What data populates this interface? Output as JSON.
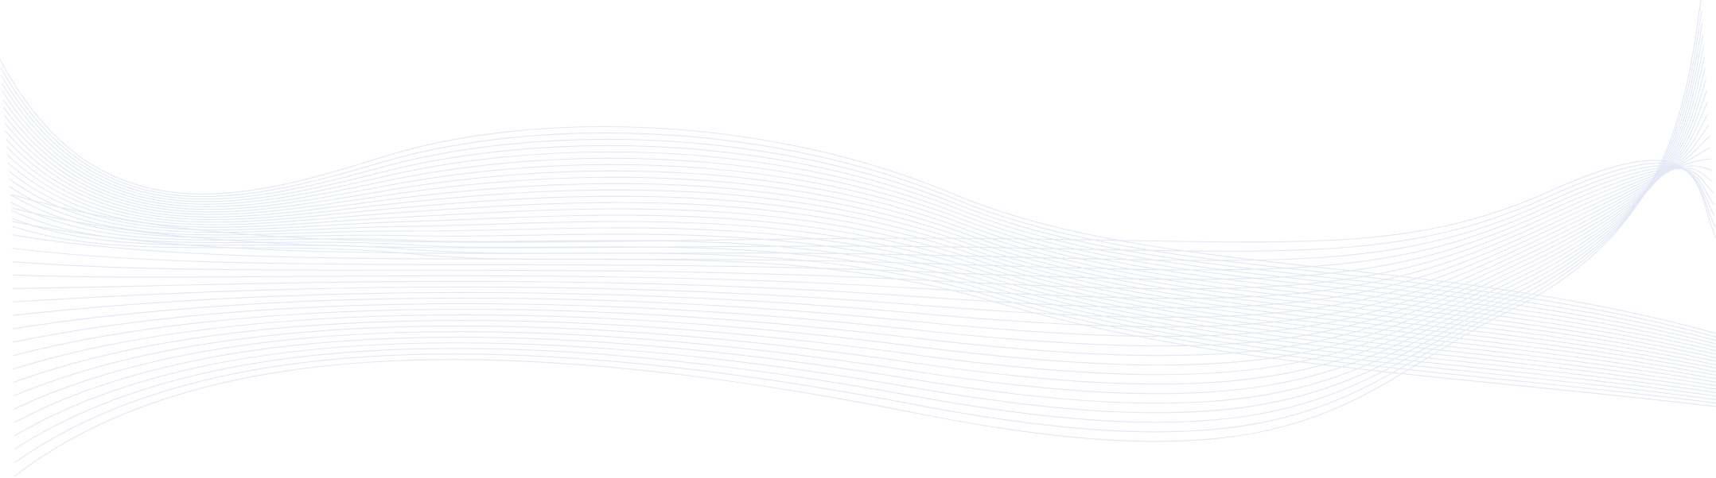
{
  "background": {
    "type": "decorative-wave-lines",
    "line_color": "#e3e7f6",
    "background_color": "#ffffff",
    "families": 2,
    "lines_per_family": 22
  }
}
